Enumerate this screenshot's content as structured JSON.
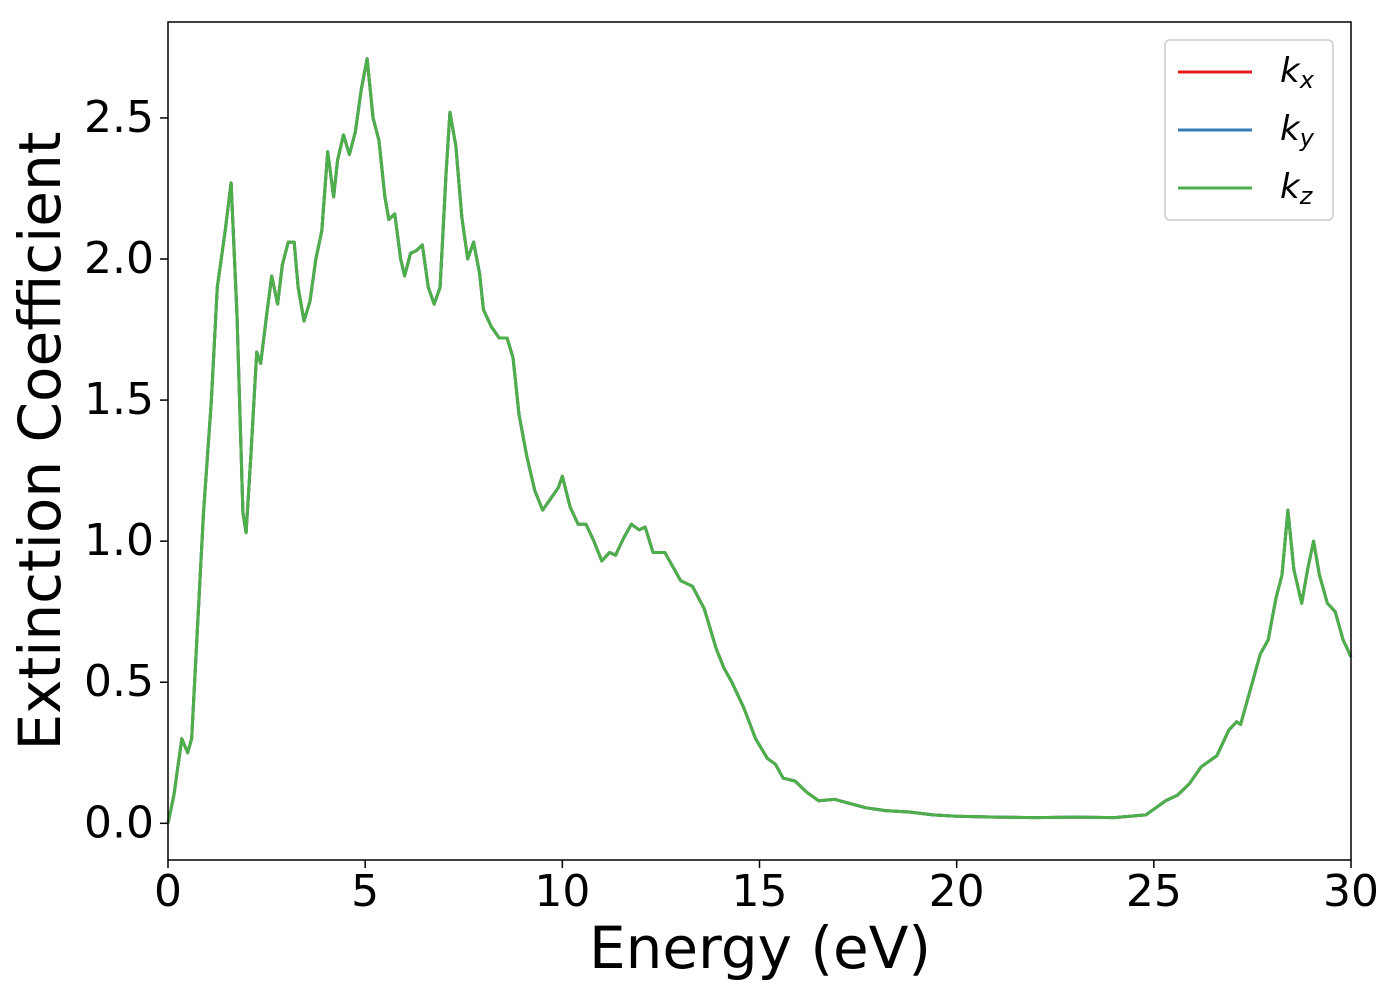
{
  "chart_data": {
    "type": "line",
    "xlabel": "Energy (eV)",
    "ylabel": "Extinction Coefficient",
    "x": [
      0,
      0.15,
      0.35,
      0.5,
      0.6,
      0.75,
      0.9,
      1.1,
      1.25,
      1.45,
      1.6,
      1.75,
      1.9,
      1.98,
      2.1,
      2.25,
      2.35,
      2.5,
      2.63,
      2.78,
      2.9,
      3.05,
      3.2,
      3.3,
      3.45,
      3.6,
      3.75,
      3.9,
      4.05,
      4.2,
      4.3,
      4.45,
      4.6,
      4.75,
      4.9,
      5.05,
      5.2,
      5.35,
      5.5,
      5.6,
      5.75,
      5.9,
      6.0,
      6.15,
      6.3,
      6.45,
      6.6,
      6.75,
      6.9,
      7.05,
      7.15,
      7.3,
      7.45,
      7.6,
      7.75,
      7.9,
      8.0,
      8.2,
      8.4,
      8.6,
      8.75,
      8.9,
      9.1,
      9.3,
      9.5,
      9.7,
      9.9,
      10.0,
      10.2,
      10.4,
      10.6,
      10.8,
      11.0,
      11.2,
      11.35,
      11.55,
      11.75,
      11.95,
      12.1,
      12.3,
      12.6,
      12.8,
      13.0,
      13.3,
      13.6,
      13.9,
      14.1,
      14.3,
      14.6,
      14.9,
      15.2,
      15.4,
      15.6,
      15.9,
      16.2,
      16.5,
      16.9,
      17.3,
      17.7,
      18.2,
      18.8,
      19.4,
      20,
      21,
      22,
      23,
      24,
      24.8,
      25.0,
      25.3,
      25.6,
      25.9,
      26.2,
      26.6,
      26.9,
      27.1,
      27.2,
      27.5,
      27.7,
      27.9,
      28.1,
      28.25,
      28.4,
      28.55,
      28.75,
      28.9,
      29.05,
      29.2,
      29.4,
      29.6,
      29.8,
      30.0
    ],
    "series": [
      {
        "name": "kx",
        "color": "#e41a1c",
        "values": [
          0.0,
          0.1,
          0.3,
          0.25,
          0.3,
          0.7,
          1.1,
          1.5,
          1.9,
          2.1,
          2.27,
          1.8,
          1.1,
          1.03,
          1.3,
          1.67,
          1.63,
          1.8,
          1.94,
          1.84,
          1.98,
          2.06,
          2.06,
          1.9,
          1.78,
          1.85,
          2.0,
          2.1,
          2.38,
          2.22,
          2.35,
          2.44,
          2.37,
          2.45,
          2.6,
          2.71,
          2.5,
          2.42,
          2.22,
          2.14,
          2.16,
          2.0,
          1.94,
          2.02,
          2.03,
          2.05,
          1.9,
          1.84,
          1.9,
          2.3,
          2.52,
          2.4,
          2.15,
          2.0,
          2.06,
          1.95,
          1.82,
          1.76,
          1.72,
          1.72,
          1.65,
          1.45,
          1.3,
          1.18,
          1.11,
          1.15,
          1.19,
          1.23,
          1.12,
          1.06,
          1.06,
          1.0,
          0.93,
          0.96,
          0.95,
          1.01,
          1.06,
          1.04,
          1.05,
          0.96,
          0.96,
          0.91,
          0.86,
          0.84,
          0.76,
          0.62,
          0.55,
          0.5,
          0.41,
          0.3,
          0.23,
          0.21,
          0.16,
          0.15,
          0.11,
          0.08,
          0.085,
          0.07,
          0.055,
          0.045,
          0.04,
          0.03,
          0.025,
          0.022,
          0.02,
          0.022,
          0.02,
          0.03,
          0.05,
          0.08,
          0.1,
          0.14,
          0.2,
          0.24,
          0.33,
          0.36,
          0.35,
          0.5,
          0.6,
          0.65,
          0.8,
          0.88,
          1.11,
          0.9,
          0.78,
          0.9,
          1.0,
          0.88,
          0.78,
          0.75,
          0.65,
          0.59
        ]
      },
      {
        "name": "ky",
        "color": "#377eb8",
        "values": [
          0.0,
          0.1,
          0.3,
          0.25,
          0.3,
          0.7,
          1.1,
          1.5,
          1.9,
          2.1,
          2.27,
          1.8,
          1.1,
          1.03,
          1.3,
          1.67,
          1.63,
          1.8,
          1.94,
          1.84,
          1.98,
          2.06,
          2.06,
          1.9,
          1.78,
          1.85,
          2.0,
          2.1,
          2.38,
          2.22,
          2.35,
          2.44,
          2.37,
          2.45,
          2.6,
          2.71,
          2.5,
          2.42,
          2.22,
          2.14,
          2.16,
          2.0,
          1.94,
          2.02,
          2.03,
          2.05,
          1.9,
          1.84,
          1.9,
          2.3,
          2.52,
          2.4,
          2.15,
          2.0,
          2.06,
          1.95,
          1.82,
          1.76,
          1.72,
          1.72,
          1.65,
          1.45,
          1.3,
          1.18,
          1.11,
          1.15,
          1.19,
          1.23,
          1.12,
          1.06,
          1.06,
          1.0,
          0.93,
          0.96,
          0.95,
          1.01,
          1.06,
          1.04,
          1.05,
          0.96,
          0.96,
          0.91,
          0.86,
          0.84,
          0.76,
          0.62,
          0.55,
          0.5,
          0.41,
          0.3,
          0.23,
          0.21,
          0.16,
          0.15,
          0.11,
          0.08,
          0.085,
          0.07,
          0.055,
          0.045,
          0.04,
          0.03,
          0.025,
          0.022,
          0.02,
          0.022,
          0.02,
          0.03,
          0.05,
          0.08,
          0.1,
          0.14,
          0.2,
          0.24,
          0.33,
          0.36,
          0.35,
          0.5,
          0.6,
          0.65,
          0.8,
          0.88,
          1.11,
          0.9,
          0.78,
          0.9,
          1.0,
          0.88,
          0.78,
          0.75,
          0.65,
          0.59
        ]
      },
      {
        "name": "kz",
        "color": "#4daf4a",
        "values": [
          0.0,
          0.1,
          0.3,
          0.25,
          0.3,
          0.7,
          1.1,
          1.5,
          1.9,
          2.1,
          2.27,
          1.8,
          1.1,
          1.03,
          1.3,
          1.67,
          1.63,
          1.8,
          1.94,
          1.84,
          1.98,
          2.06,
          2.06,
          1.9,
          1.78,
          1.85,
          2.0,
          2.1,
          2.38,
          2.22,
          2.35,
          2.44,
          2.37,
          2.45,
          2.6,
          2.71,
          2.5,
          2.42,
          2.22,
          2.14,
          2.16,
          2.0,
          1.94,
          2.02,
          2.03,
          2.05,
          1.9,
          1.84,
          1.9,
          2.3,
          2.52,
          2.4,
          2.15,
          2.0,
          2.06,
          1.95,
          1.82,
          1.76,
          1.72,
          1.72,
          1.65,
          1.45,
          1.3,
          1.18,
          1.11,
          1.15,
          1.19,
          1.23,
          1.12,
          1.06,
          1.06,
          1.0,
          0.93,
          0.96,
          0.95,
          1.01,
          1.06,
          1.04,
          1.05,
          0.96,
          0.96,
          0.91,
          0.86,
          0.84,
          0.76,
          0.62,
          0.55,
          0.5,
          0.41,
          0.3,
          0.23,
          0.21,
          0.16,
          0.15,
          0.11,
          0.08,
          0.085,
          0.07,
          0.055,
          0.045,
          0.04,
          0.03,
          0.025,
          0.022,
          0.02,
          0.022,
          0.02,
          0.03,
          0.05,
          0.08,
          0.1,
          0.14,
          0.2,
          0.24,
          0.33,
          0.36,
          0.35,
          0.5,
          0.6,
          0.65,
          0.8,
          0.88,
          1.11,
          0.9,
          0.78,
          0.9,
          1.0,
          0.88,
          0.78,
          0.75,
          0.65,
          0.59
        ]
      }
    ],
    "xlim": [
      0,
      30
    ],
    "xticks": [
      0,
      5,
      10,
      15,
      20,
      25,
      30
    ],
    "ylim": [
      -0.13,
      2.84
    ],
    "yticks": [
      {
        "value": 0,
        "label": "0.0"
      },
      {
        "value": 0.5,
        "label": "0.5"
      },
      {
        "value": 1,
        "label": "1.0"
      },
      {
        "value": 1.5,
        "label": "1.5"
      },
      {
        "value": 2,
        "label": "2.0"
      },
      {
        "value": 2.5,
        "label": "2.5"
      }
    ],
    "grid": false,
    "legend": "upper right"
  }
}
